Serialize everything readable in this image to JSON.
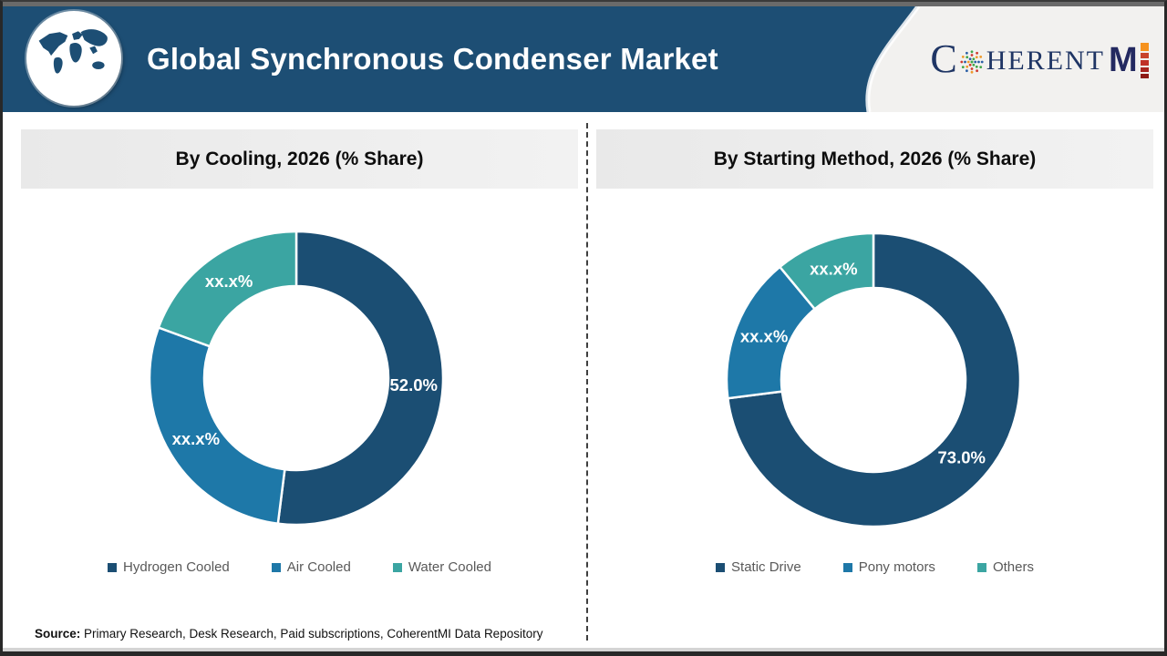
{
  "colors": {
    "header_blue": "#1D4E74",
    "header_right_bg": "#F2F1EF",
    "panel_banner_bg": "#EDEDED",
    "legend_text": "#595959",
    "brand_navy": "#1F3564",
    "slice_navy": "#1B4E73",
    "slice_blue": "#1E78A8",
    "slice_teal": "#3BA5A2"
  },
  "header": {
    "title": "Global Synchronous Condenser Market",
    "brand": {
      "c": "C",
      "herent": "HERENT",
      "m": "M",
      "dot_colors": [
        "#2B5FA5",
        "#3FA548",
        "#CE3A2E",
        "#EE9A2B"
      ],
      "i_bar_colors": [
        "#F6921E",
        "#C8442C",
        "#C03028",
        "#A82420",
        "#8E1B16"
      ],
      "i_bar_heights": [
        9,
        6,
        6,
        5,
        5
      ]
    }
  },
  "chart_data": [
    {
      "type": "pie",
      "variant": "donut",
      "title": "By Cooling, 2026 (% Share)",
      "categories": [
        "Hydrogen Cooled",
        "Air Cooled",
        "Water Cooled"
      ],
      "values": [
        52.0,
        28.6,
        19.4
      ],
      "value_labels": [
        "52.0%",
        "xx.x%",
        "xx.x%"
      ],
      "colors": [
        "#1B4E73",
        "#1E78A8",
        "#3BA5A2"
      ],
      "start_angle_deg": 0,
      "direction": "clockwise",
      "legend_position": "bottom"
    },
    {
      "type": "pie",
      "variant": "donut",
      "title": "By Starting Method, 2026 (% Share)",
      "categories": [
        "Static Drive",
        "Pony motors",
        "Others"
      ],
      "values": [
        73.0,
        16.0,
        11.0
      ],
      "value_labels": [
        "73.0%",
        "xx.x%",
        "xx.x%"
      ],
      "colors": [
        "#1B4E73",
        "#1E78A8",
        "#3BA5A2"
      ],
      "start_angle_deg": 0,
      "direction": "clockwise",
      "legend_position": "bottom"
    }
  ],
  "footer": {
    "source_label": "Source:",
    "source_text": " Primary Research, Desk Research, Paid subscriptions, CoherentMI Data Repository"
  }
}
